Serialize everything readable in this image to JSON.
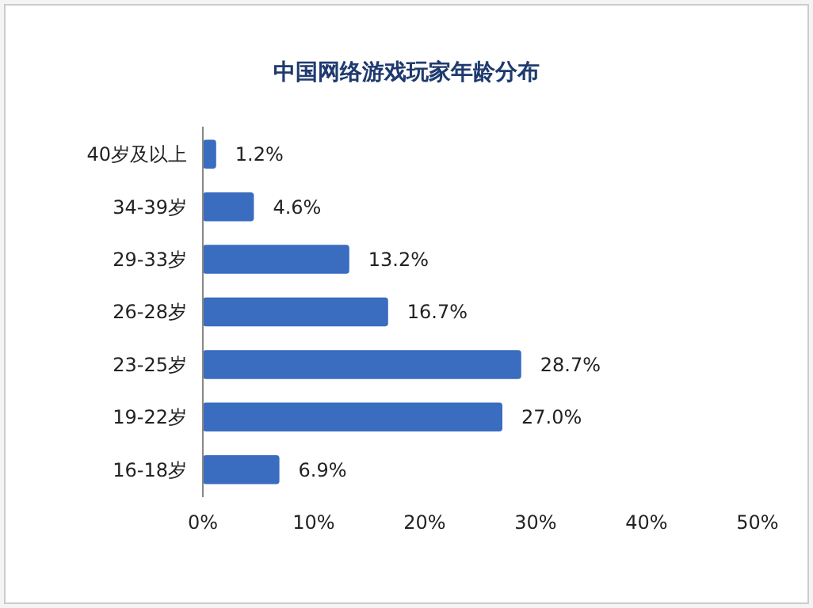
{
  "chart_data": {
    "type": "bar",
    "orientation": "horizontal",
    "title": "中国网络游戏玩家年龄分布",
    "categories": [
      "40岁及以上",
      "34-39岁",
      "29-33岁",
      "26-28岁",
      "23-25岁",
      "19-22岁",
      "16-18岁"
    ],
    "values": [
      1.2,
      4.6,
      13.2,
      16.7,
      28.7,
      27.0,
      6.9
    ],
    "value_labels": [
      "1.2%",
      "4.6%",
      "13.2%",
      "16.7%",
      "28.7%",
      "27.0%",
      "6.9%"
    ],
    "color": "#3a6cc0",
    "xlim": [
      0,
      50
    ],
    "xticks": [
      {
        "value": 0,
        "label": "0%"
      },
      {
        "value": 10,
        "label": "10%"
      },
      {
        "value": 20,
        "label": "20%"
      },
      {
        "value": 30,
        "label": "30%"
      },
      {
        "value": 40,
        "label": "40%"
      },
      {
        "value": 50,
        "label": "50%"
      }
    ],
    "grid": false
  }
}
